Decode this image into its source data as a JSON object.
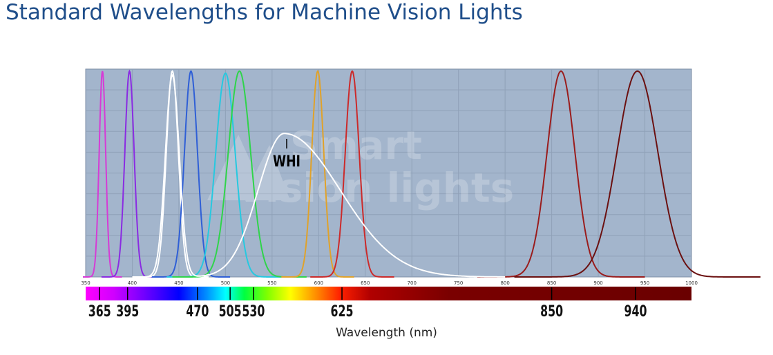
{
  "header": {
    "title": "Standard Wavelengths for Machine Vision Lights"
  },
  "watermark": {
    "line1": "Smart",
    "line2": "Vision lights"
  },
  "chart_data": {
    "type": "line",
    "title": "Standard Wavelengths for Machine Vision Lights",
    "xlabel": "Wavelength (nm)",
    "ylabel": "",
    "xlim": [
      350,
      1000
    ],
    "ylim": [
      0,
      1
    ],
    "grid": true,
    "x_ticks": [
      350,
      400,
      450,
      500,
      550,
      600,
      650,
      700,
      750,
      800,
      850,
      900,
      950,
      1000
    ],
    "band_labels": [
      "365",
      "395",
      "470",
      "505",
      "530",
      "625",
      "850",
      "940"
    ],
    "band_label_values": [
      365,
      395,
      470,
      505,
      530,
      625,
      850,
      940
    ],
    "annotation": {
      "text": "WHI",
      "x": 565,
      "y": 0.61
    },
    "series": [
      {
        "color": "#d63bd6",
        "peak_nm": 368,
        "width_nm": 3.5,
        "peak": 0.99
      },
      {
        "color": "#8a2be2",
        "peak_nm": 397,
        "width_nm": 5,
        "peak": 0.99
      },
      {
        "color": "#ffffff",
        "peak_nm": 443,
        "width_nm": 6.5,
        "peak": 0.99
      },
      {
        "color": "#2f5fd6",
        "peak_nm": 463,
        "width_nm": 7,
        "peak": 0.99
      },
      {
        "color": "#25c9e0",
        "peak_nm": 500,
        "width_nm": 10.5,
        "peak": 0.98
      },
      {
        "color": "#2fd44a",
        "peak_nm": 515,
        "width_nm": 12,
        "peak": 0.99
      },
      {
        "color": "#e0a22a",
        "peak_nm": 599,
        "width_nm": 6.5,
        "peak": 0.99
      },
      {
        "color": "#cc2a2a",
        "peak_nm": 636,
        "width_nm": 7.5,
        "peak": 0.99
      },
      {
        "color": "#9a1c1c",
        "peak_nm": 860,
        "width_nm": 15,
        "peak": 0.99
      },
      {
        "color": "#6b1010",
        "peak_nm": 942,
        "width_nm": 22,
        "peak": 0.99
      },
      {
        "color": "#ffffff",
        "white_led": true,
        "peak": 0.69
      }
    ]
  }
}
